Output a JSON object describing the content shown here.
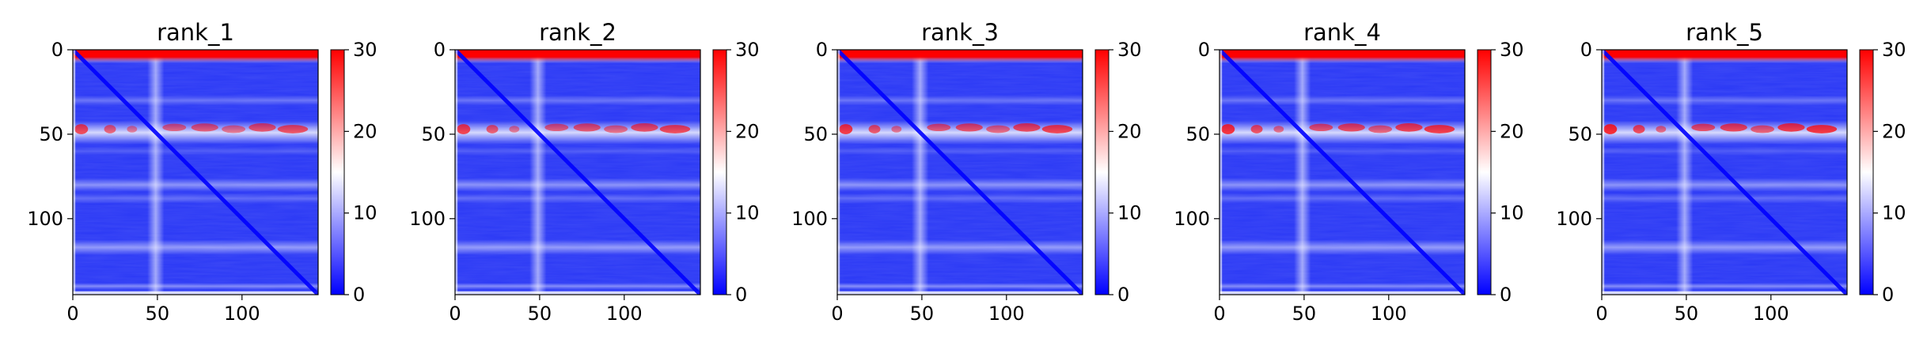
{
  "colors": {
    "low": "#0000ff",
    "mid": "#ffffff",
    "high": "#ff0000"
  },
  "chart_data": [
    {
      "type": "heatmap",
      "title": "rank_1",
      "colormap": "bwr",
      "xlim": [
        0,
        145
      ],
      "ylim": [
        145,
        0
      ],
      "xticks": [
        0,
        50,
        100
      ],
      "yticks": [
        0,
        50,
        100
      ],
      "colorbar": {
        "ticks": [
          0,
          10,
          20,
          30
        ],
        "range": [
          0,
          30
        ]
      }
    },
    {
      "type": "heatmap",
      "title": "rank_2",
      "colormap": "bwr",
      "xlim": [
        0,
        145
      ],
      "ylim": [
        145,
        0
      ],
      "xticks": [
        0,
        50,
        100
      ],
      "yticks": [
        0,
        50,
        100
      ],
      "colorbar": {
        "ticks": [
          0,
          10,
          20,
          30
        ],
        "range": [
          0,
          30
        ]
      }
    },
    {
      "type": "heatmap",
      "title": "rank_3",
      "colormap": "bwr",
      "xlim": [
        0,
        145
      ],
      "ylim": [
        145,
        0
      ],
      "xticks": [
        0,
        50,
        100
      ],
      "yticks": [
        0,
        50,
        100
      ],
      "colorbar": {
        "ticks": [
          0,
          10,
          20,
          30
        ],
        "range": [
          0,
          30
        ]
      }
    },
    {
      "type": "heatmap",
      "title": "rank_4",
      "colormap": "bwr",
      "xlim": [
        0,
        145
      ],
      "ylim": [
        145,
        0
      ],
      "xticks": [
        0,
        50,
        100
      ],
      "yticks": [
        0,
        50,
        100
      ],
      "colorbar": {
        "ticks": [
          0,
          10,
          20,
          30
        ],
        "range": [
          0,
          30
        ]
      }
    },
    {
      "type": "heatmap",
      "title": "rank_5",
      "colormap": "bwr",
      "xlim": [
        0,
        145
      ],
      "ylim": [
        145,
        0
      ],
      "xticks": [
        0,
        50,
        100
      ],
      "yticks": [
        0,
        50,
        100
      ],
      "colorbar": {
        "ticks": [
          0,
          10,
          20,
          30
        ],
        "range": [
          0,
          30
        ]
      }
    }
  ]
}
